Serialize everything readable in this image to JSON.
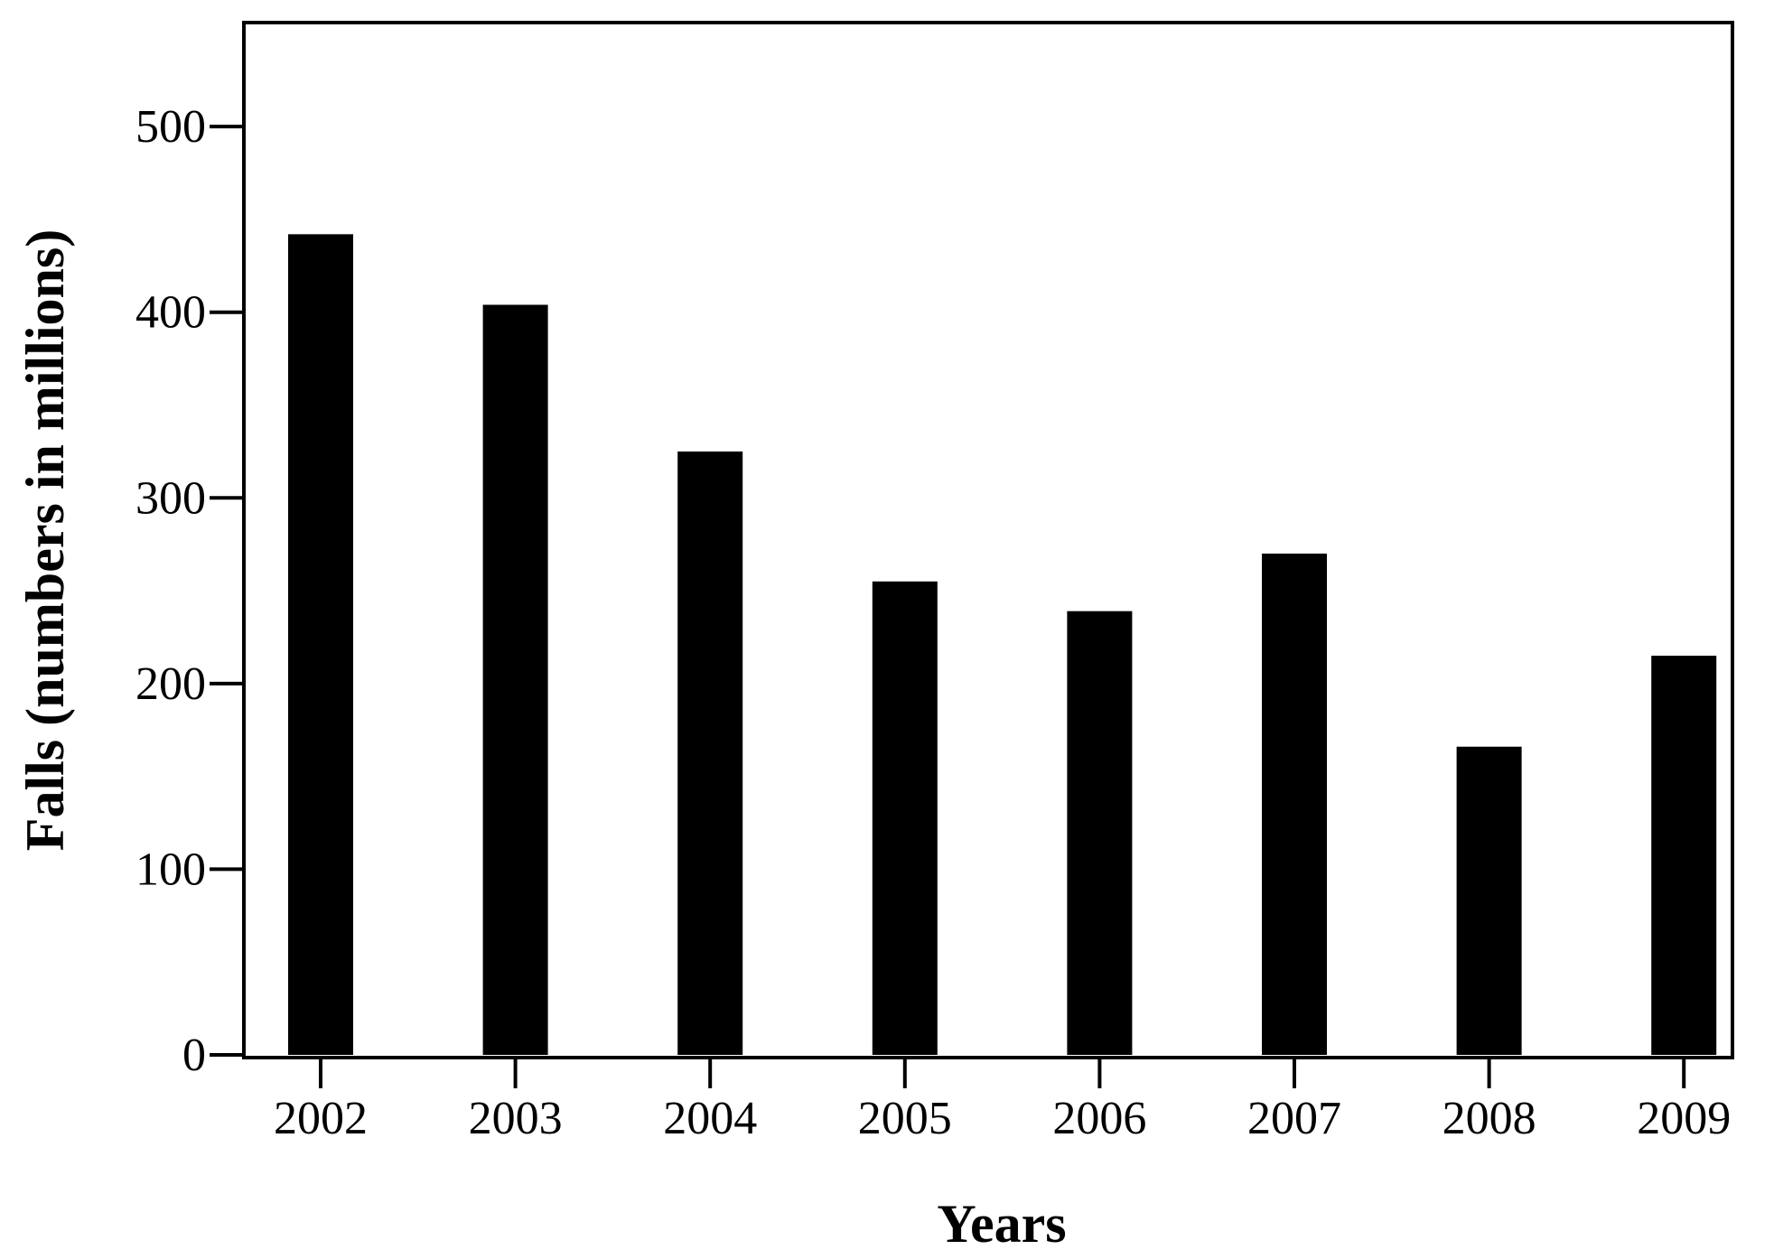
{
  "chart_data": {
    "type": "bar",
    "title": "",
    "xlabel": "Years",
    "ylabel": "Falls (numbers in millions)",
    "categories": [
      "2002",
      "2003",
      "2004",
      "2005",
      "2006",
      "2007",
      "2008",
      "2009"
    ],
    "values": [
      442,
      404,
      325,
      255,
      239,
      270,
      166,
      215
    ],
    "ylim": [
      0,
      556
    ],
    "yticks": [
      0,
      100,
      200,
      300,
      400,
      500
    ],
    "grid": false,
    "legend": "none",
    "bar_color": "#000000"
  }
}
